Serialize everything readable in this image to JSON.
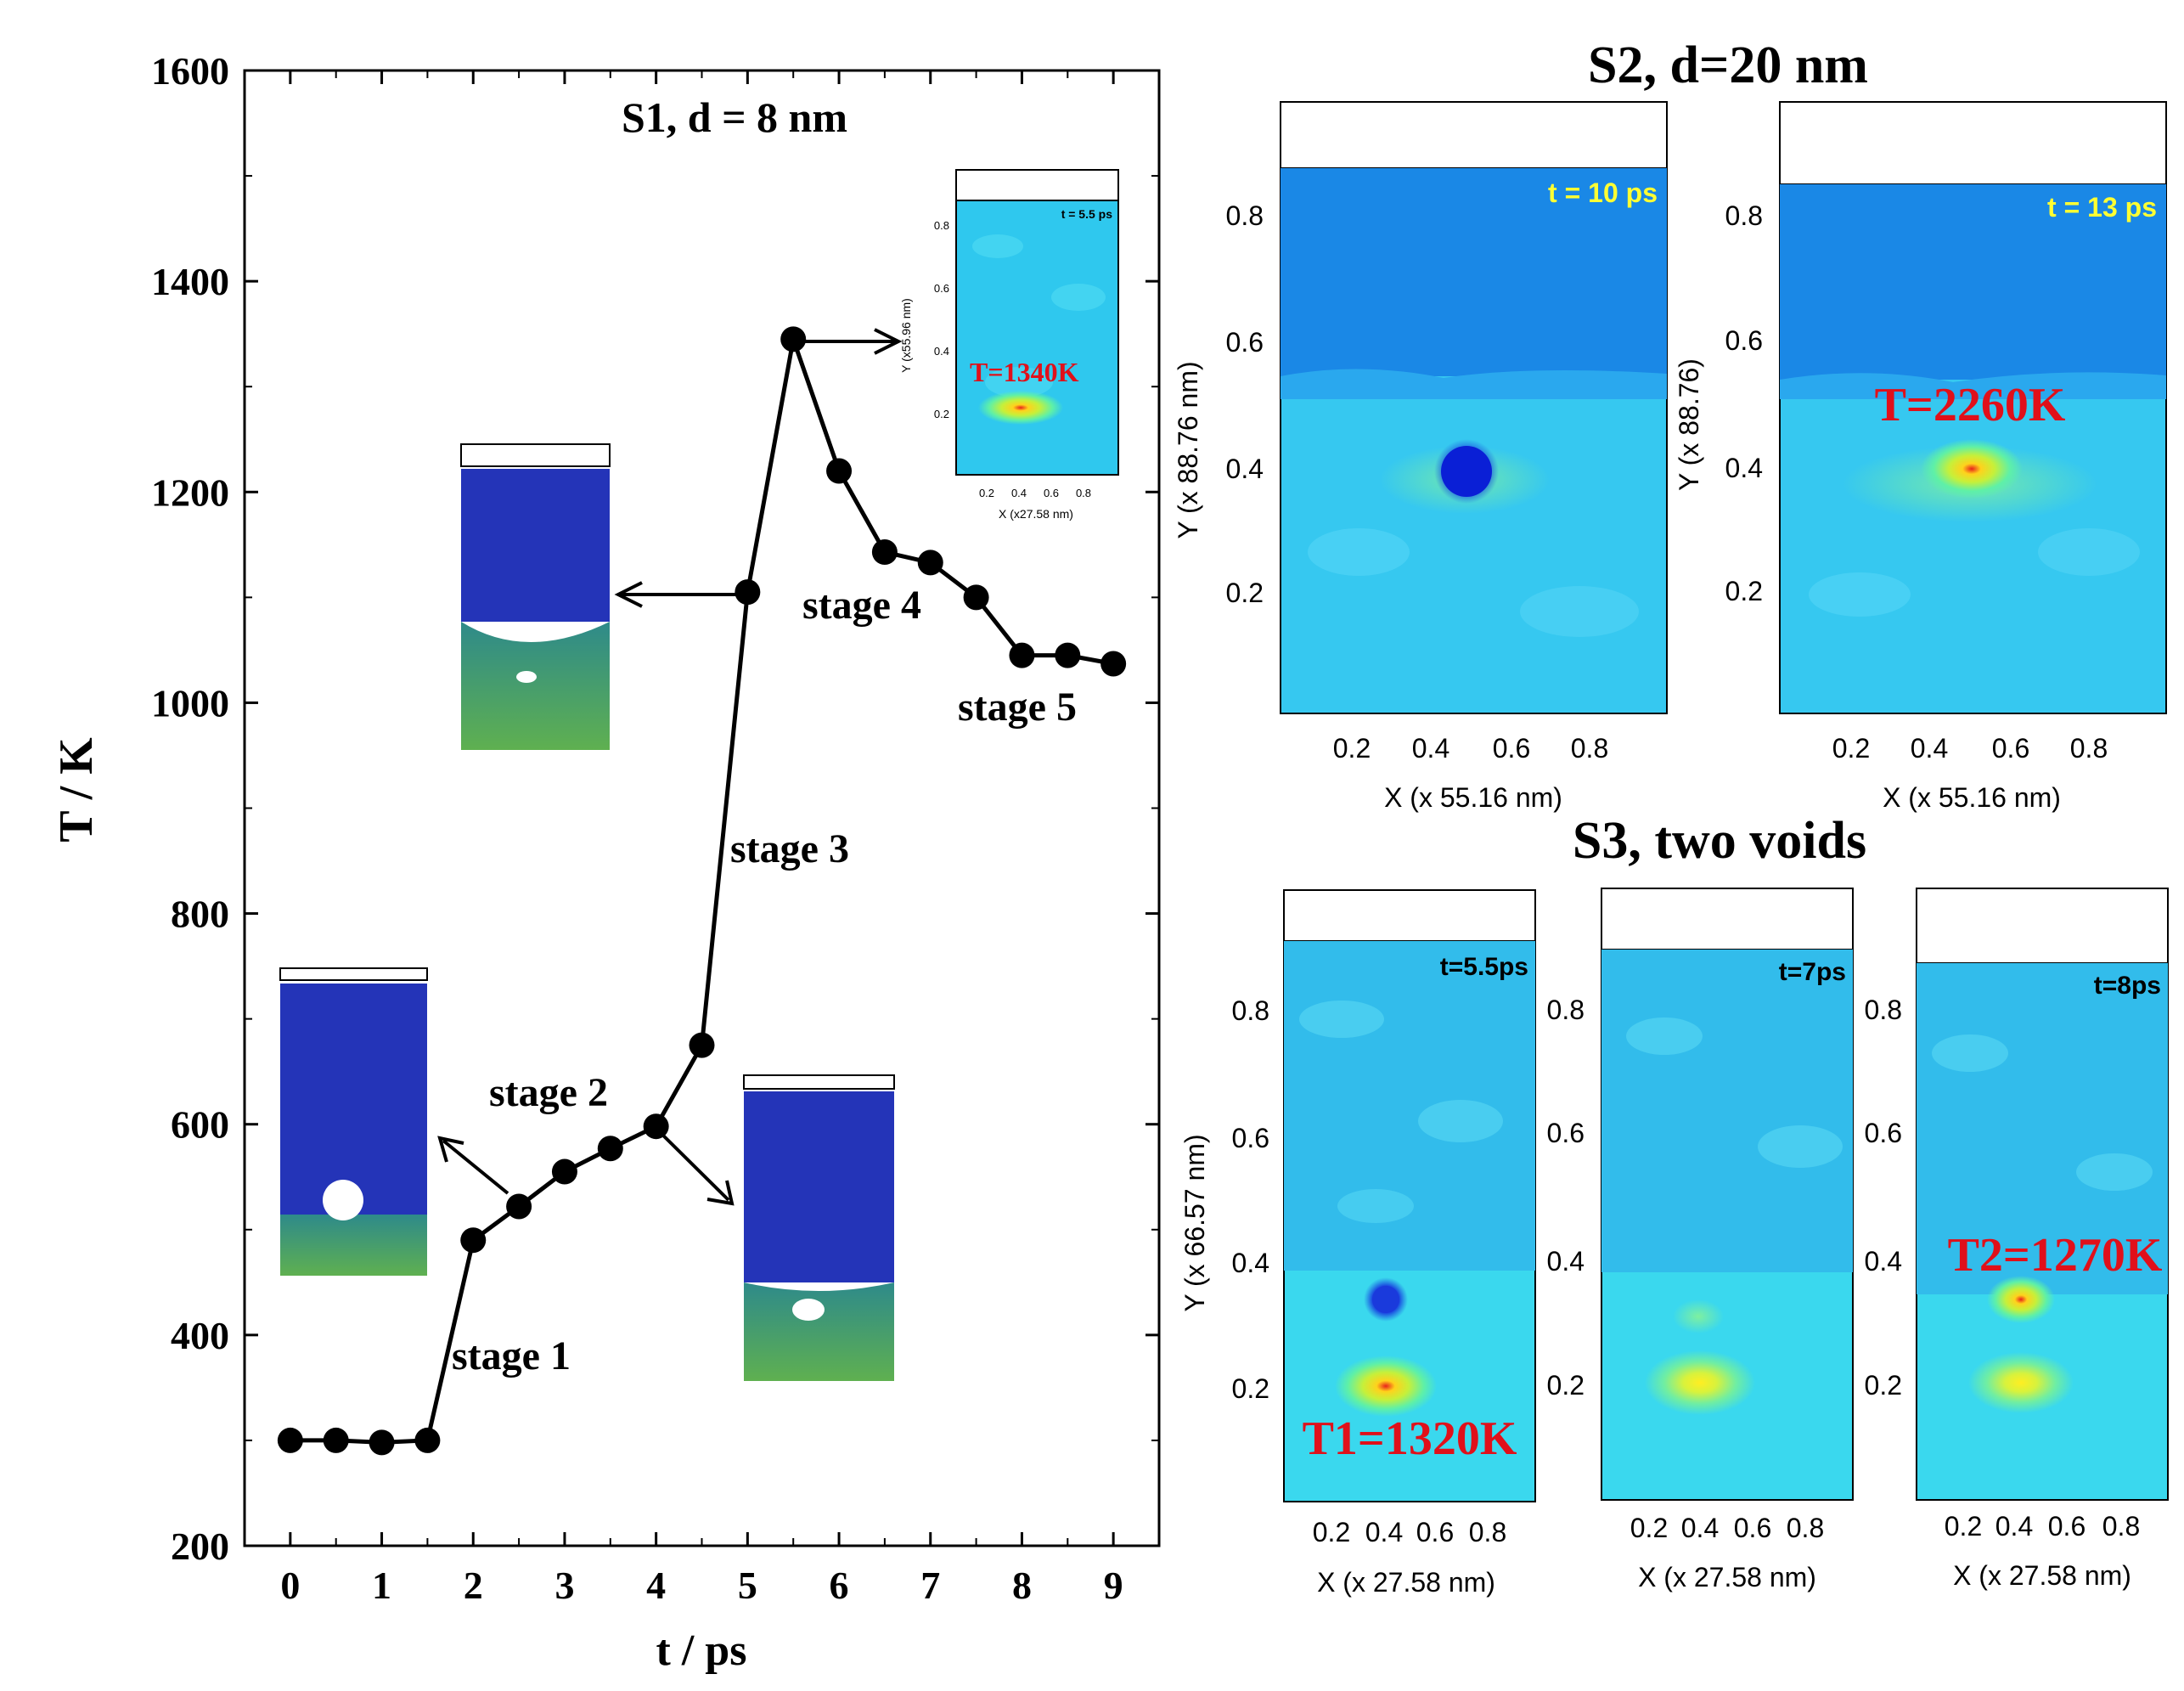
{
  "chart_data": [
    {
      "type": "line",
      "title": "S1, d = 8 nm",
      "xlabel": "t / ps",
      "ylabel": "T / K",
      "xlim": [
        -0.5,
        9.5
      ],
      "ylim": [
        200,
        1600
      ],
      "xticks": [
        0,
        1,
        2,
        3,
        4,
        5,
        6,
        7,
        8,
        9
      ],
      "yticks": [
        200,
        400,
        600,
        800,
        1000,
        1200,
        1400,
        1600
      ],
      "series": [
        {
          "x": [
            0,
            0.5,
            1,
            1.5,
            2,
            2.5,
            3,
            3.5,
            4,
            4.5,
            5,
            5.5,
            6,
            6.5,
            7,
            7.5,
            8,
            8.5,
            9
          ],
          "values": [
            300,
            300,
            298,
            300,
            490,
            522,
            555,
            577,
            598,
            675,
            1105,
            1345,
            1220,
            1143,
            1133,
            1100,
            1045,
            1045,
            1037
          ]
        }
      ],
      "annotations": [
        "stage 1",
        "stage 2",
        "stage 3",
        "stage 4",
        "stage 5"
      ],
      "inset": {
        "time_label": "t = 5.5 ps",
        "temperature_label": "T=1340K",
        "xlabel": "X (x27.58 nm)",
        "ylabel": "Y (x55.96 nm)",
        "xticks": [
          "0.2",
          "0.4",
          "0.6",
          "0.8"
        ],
        "yticks": [
          "0.2",
          "0.4",
          "0.6",
          "0.8"
        ]
      }
    },
    {
      "type": "heatmap",
      "group_title": "S2, d=20 nm",
      "panels": [
        {
          "time_label": "t = 10 ps",
          "xlabel": "X (x 55.16 nm)",
          "ylabel": "Y (x 88.76 nm)",
          "temperature_label": ""
        },
        {
          "time_label": "t = 13 ps",
          "xlabel": "X (x 55.16 nm)",
          "ylabel": "Y (x 88.76)",
          "temperature_label": "T=2260K"
        }
      ],
      "xticks": [
        "0.2",
        "0.4",
        "0.6",
        "0.8"
      ],
      "yticks": [
        "0.2",
        "0.4",
        "0.6",
        "0.8"
      ]
    },
    {
      "type": "heatmap",
      "group_title": "S3, two voids",
      "panels": [
        {
          "time_label": "t=5.5ps",
          "xlabel": "X (x 27.58 nm)",
          "ylabel": "Y (x 66.57 nm)",
          "temperature_label": "T1=1320K"
        },
        {
          "time_label": "t=7ps",
          "xlabel": "X (x 27.58 nm)",
          "ylabel": "",
          "temperature_label": ""
        },
        {
          "time_label": "t=8ps",
          "xlabel": "X (x 27.58 nm)",
          "ylabel": "",
          "temperature_label": "T2=1270K"
        }
      ],
      "xticks": [
        "0.2",
        "0.4",
        "0.6",
        "0.8"
      ],
      "yticks": [
        "0.2",
        "0.4",
        "0.6",
        "0.8"
      ]
    }
  ],
  "colors": {
    "line": "#000000",
    "annotation_red": "#e0101a",
    "time_label_yellow": "#ffff33",
    "heat_bg": "#27c5ee",
    "heat_top": "#1a86e6",
    "atom_blue": "#2237c0",
    "atom_green": "#3fae6e"
  }
}
